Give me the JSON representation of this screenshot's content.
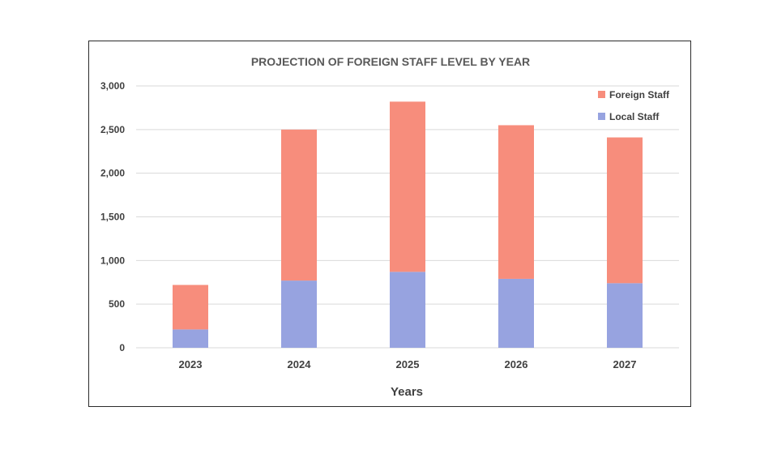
{
  "chart_data": {
    "type": "bar",
    "stacked": true,
    "title": "PROJECTION OF FOREIGN STAFF LEVEL BY YEAR",
    "xlabel": "Years",
    "ylabel": "",
    "categories": [
      "2023",
      "2024",
      "2025",
      "2026",
      "2027"
    ],
    "ylim": [
      0,
      3000
    ],
    "yticks": [
      0,
      500,
      1000,
      1500,
      2000,
      2500,
      3000
    ],
    "ytick_labels": [
      "0",
      "500",
      "1,000",
      "1,500",
      "2,000",
      "2,500",
      "3,000"
    ],
    "grid": true,
    "legend_position": "top-right",
    "series": [
      {
        "name": "Local Staff",
        "color": "#97a3e0",
        "values": [
          210,
          770,
          870,
          790,
          740
        ]
      },
      {
        "name": "Foreign Staff",
        "color": "#f78d7c",
        "values": [
          510,
          1730,
          1950,
          1760,
          1670
        ]
      }
    ],
    "legend_order": [
      "Foreign Staff",
      "Local Staff"
    ]
  }
}
